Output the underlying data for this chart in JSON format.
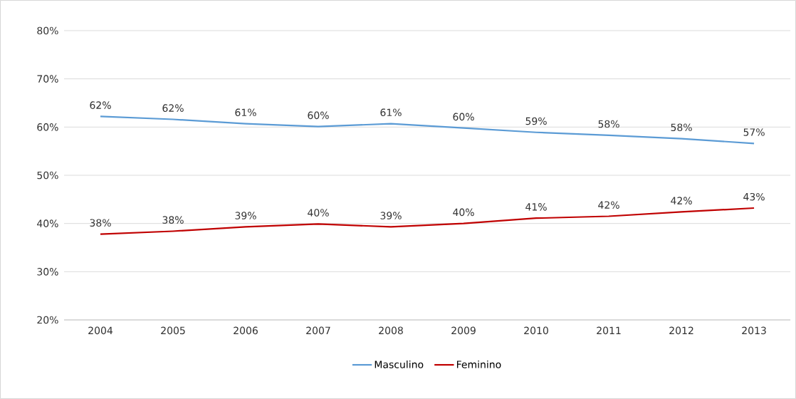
{
  "chart_data": {
    "type": "line",
    "categories": [
      "2004",
      "2005",
      "2006",
      "2007",
      "2008",
      "2009",
      "2010",
      "2011",
      "2012",
      "2013"
    ],
    "series": [
      {
        "name": "Masculino",
        "color": "#5b9bd5",
        "values": [
          62.2,
          61.6,
          60.7,
          60.1,
          60.7,
          59.8,
          58.9,
          58.3,
          57.6,
          56.6
        ],
        "value_labels": [
          "62%",
          "62%",
          "61%",
          "60%",
          "61%",
          "60%",
          "59%",
          "58%",
          "58%",
          "57%"
        ]
      },
      {
        "name": "Feminino",
        "color": "#c00000",
        "values": [
          37.8,
          38.4,
          39.3,
          39.9,
          39.3,
          40.0,
          41.1,
          41.5,
          42.4,
          43.2
        ],
        "value_labels": [
          "38%",
          "38%",
          "39%",
          "40%",
          "39%",
          "40%",
          "41%",
          "42%",
          "42%",
          "43%"
        ]
      }
    ],
    "ylim": [
      20,
      80
    ],
    "yticks": [
      {
        "value": 20,
        "label": "20%"
      },
      {
        "value": 30,
        "label": "30%"
      },
      {
        "value": 40,
        "label": "40%"
      },
      {
        "value": 50,
        "label": "50%"
      },
      {
        "value": 60,
        "label": "60%"
      },
      {
        "value": 70,
        "label": "70%"
      },
      {
        "value": 80,
        "label": "80%"
      }
    ],
    "grid": "y",
    "legend": "bottom",
    "marker": "none",
    "line_style": "solid"
  }
}
